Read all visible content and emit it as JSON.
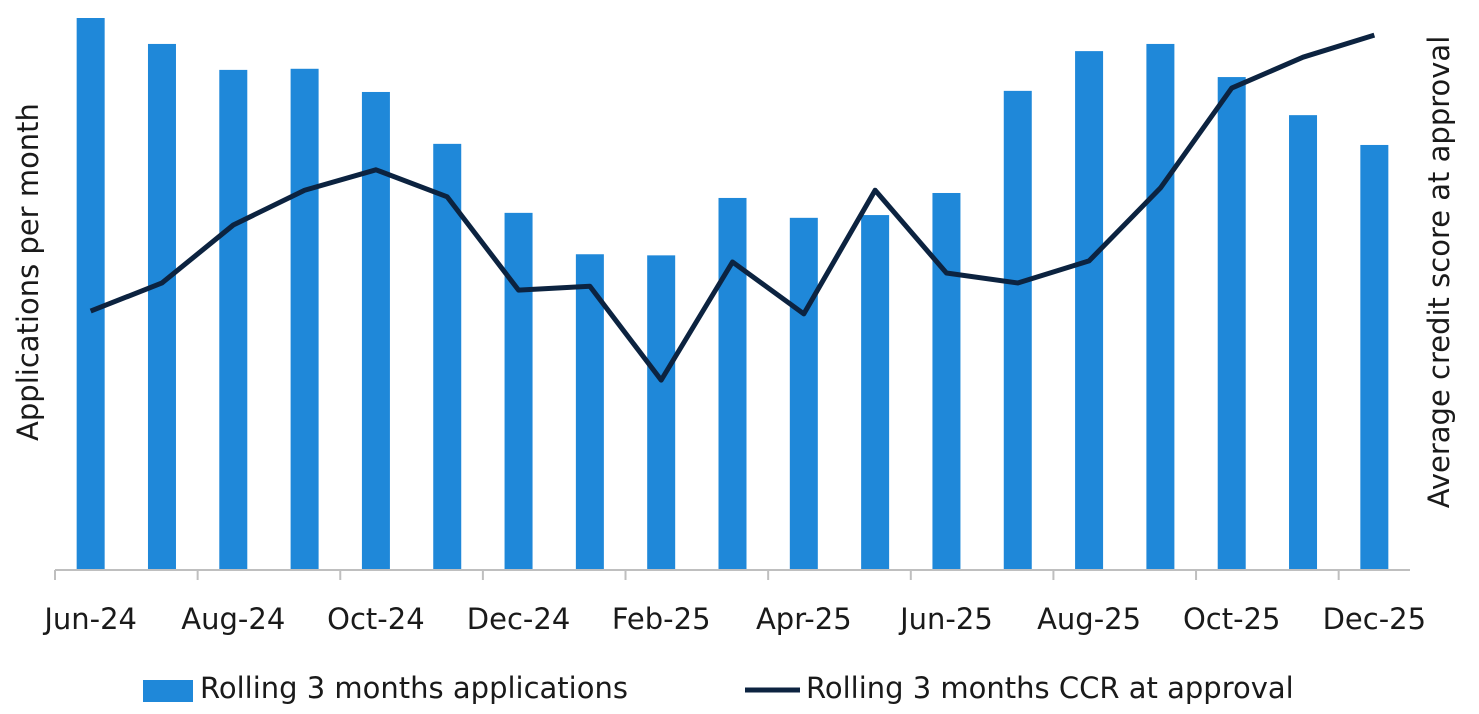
{
  "chart_data": {
    "type": "bar_line",
    "y_label": "Applications per month",
    "y2_label": "Average credit score at approval",
    "categories": [
      "Jun-24",
      null,
      "Aug-24",
      null,
      "Oct-24",
      null,
      "Dec-24",
      null,
      "Feb-25",
      null,
      "Apr-25",
      null,
      "Jun-25",
      null,
      "Aug-25",
      null,
      "Oct-25",
      null,
      "Dec-25"
    ],
    "ylim": [
      0,
      100
    ],
    "y2lim": [
      0,
      100
    ],
    "series": [
      {
        "name": "Rolling 3 months applications",
        "type": "bar",
        "color": "#1f88d9",
        "values": [
          100,
          95.3,
          90.6,
          90.8,
          86.6,
          77.2,
          64.7,
          57.2,
          57.0,
          67.4,
          63.8,
          64.3,
          68.3,
          86.8,
          94.0,
          95.3,
          89.3,
          82.4,
          77.0
        ]
      },
      {
        "name": "Rolling 3 months CCR at approval",
        "type": "line",
        "axis": "y2",
        "color": "#0c2340",
        "values": [
          46.9,
          52.0,
          62.5,
          68.8,
          72.5,
          67.6,
          50.7,
          51.4,
          34.4,
          55.8,
          46.4,
          68.8,
          53.8,
          52.0,
          56.0,
          69.2,
          87.3,
          92.9,
          96.9
        ]
      }
    ]
  }
}
